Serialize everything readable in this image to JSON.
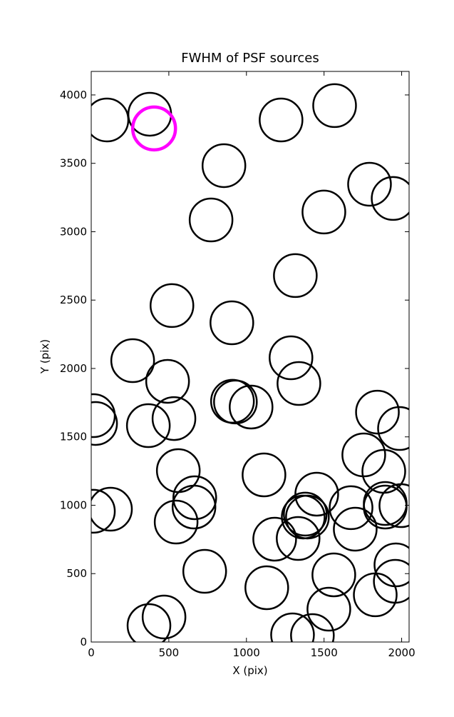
{
  "chart_data": {
    "type": "scatter",
    "title": "FWHM of PSF sources",
    "x_label": "X (pix)",
    "y_label": "Y (pix)",
    "xlim": [
      0,
      2048
    ],
    "ylim": [
      0,
      4172
    ],
    "xticks": [
      0,
      500,
      1000,
      1500,
      2000
    ],
    "yticks": [
      0,
      500,
      1000,
      1500,
      2000,
      2500,
      3000,
      3500,
      4000
    ],
    "marker": "open-circle",
    "series": [
      {
        "color": "#000000",
        "x": [
          101,
          377,
          1223,
          1568,
          855,
          1793,
          1945,
          1499,
          772,
          1315,
          520,
          906,
          267,
          1287,
          492,
          1338,
          14,
          28,
          368,
          533,
          910,
          929,
          1030,
          1844,
          1986,
          561,
          1113,
          1756,
          1885,
          667,
          662,
          1453,
          124,
          14,
          1379,
          1366,
          1393,
          1674,
          1894,
          1894,
          1995,
          1701,
          547,
          1182,
          1333,
          731,
          1563,
          1963,
          1959,
          1830,
          1131,
          1531,
          469,
          372,
          1297,
          1425
        ],
        "values": [
          3817,
          3859,
          3817,
          3922,
          3483,
          3347,
          3243,
          3144,
          3086,
          2679,
          2460,
          2334,
          2057,
          2078,
          1906,
          1890,
          1655,
          1598,
          1582,
          1634,
          1760,
          1755,
          1718,
          1681,
          1561,
          1253,
          1222,
          1368,
          1248,
          1055,
          987,
          1081,
          971,
          956,
          935,
          914,
          914,
          982,
          1013,
          987,
          997,
          825,
          877,
          752,
          757,
          517,
          491,
          564,
          444,
          345,
          397,
          240,
          183,
          120,
          52,
          47
        ]
      },
      {
        "color": "#ff00ff",
        "x": [
          405
        ],
        "values": [
          3755
        ]
      }
    ]
  }
}
